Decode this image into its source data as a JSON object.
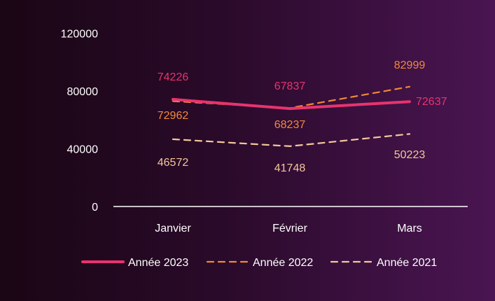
{
  "colors": {
    "series_2023": "#e8336e",
    "series_2022": "#f08a3a",
    "series_2021": "#f3c89a",
    "axis": "#ffffff",
    "tick_text": "#ffffff"
  },
  "chart_data": {
    "type": "line",
    "categories": [
      "Janvier",
      "Février",
      "Mars"
    ],
    "ylim": [
      0,
      120000
    ],
    "yticks": [
      0,
      40000,
      80000,
      120000
    ],
    "grid": false,
    "legend_position": "bottom",
    "series": [
      {
        "name": "Année 2023",
        "values": [
          74226,
          67837,
          72637
        ],
        "style": "solid"
      },
      {
        "name": "Année 2022",
        "values": [
          72962,
          68237,
          82999
        ],
        "style": "dashed"
      },
      {
        "name": "Année 2021",
        "values": [
          46572,
          41748,
          50223
        ],
        "style": "dashed"
      }
    ]
  }
}
